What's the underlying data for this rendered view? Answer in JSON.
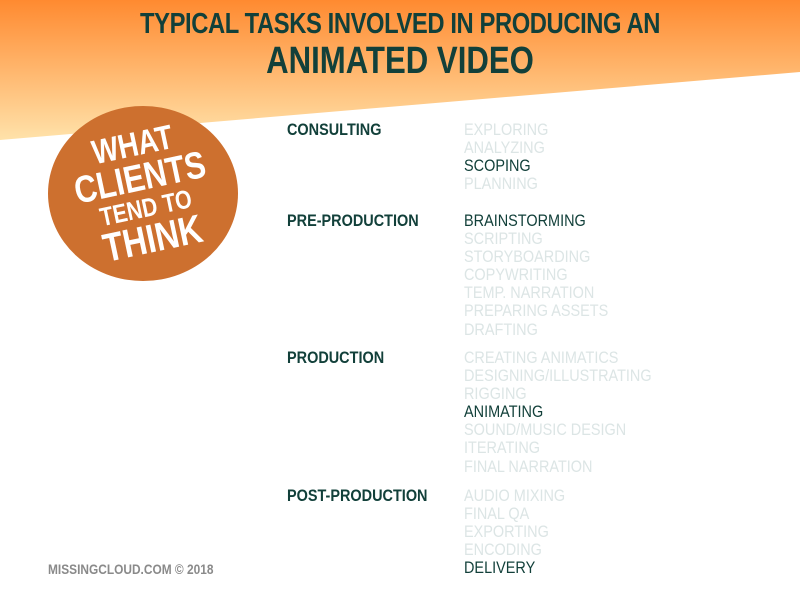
{
  "title": {
    "line1": "TYPICAL TASKS INVOLVED IN PRODUCING AN",
    "line2": "ANIMATED VIDEO"
  },
  "badge": {
    "lines": [
      "WHAT",
      "CLIENTS",
      "TEND TO",
      "THINK"
    ],
    "color": "#cd702f"
  },
  "colors": {
    "highlight": "#12403a",
    "faded": "#dce5e5",
    "header_gradient_top": "#ff8a30",
    "header_gradient_bottom": "#ffe2aa"
  },
  "stages": [
    {
      "label": "CONSULTING",
      "tasks": [
        {
          "text": "EXPLORING",
          "highlight": false
        },
        {
          "text": "ANALYZING",
          "highlight": false
        },
        {
          "text": "SCOPING",
          "highlight": true
        },
        {
          "text": "PLANNING",
          "highlight": false
        }
      ]
    },
    {
      "label": "PRE-PRODUCTION",
      "tasks": [
        {
          "text": "BRAINSTORMING",
          "highlight": true
        },
        {
          "text": "SCRIPTING",
          "highlight": false
        },
        {
          "text": "STORYBOARDING",
          "highlight": false
        },
        {
          "text": "COPYWRITING",
          "highlight": false
        },
        {
          "text": "TEMP. NARRATION",
          "highlight": false
        },
        {
          "text": "PREPARING ASSETS",
          "highlight": false
        },
        {
          "text": "DRAFTING",
          "highlight": false
        }
      ]
    },
    {
      "label": "PRODUCTION",
      "tasks": [
        {
          "text": "CREATING ANIMATICS",
          "highlight": false
        },
        {
          "text": "DESIGNING/ILLUSTRATING",
          "highlight": false
        },
        {
          "text": "RIGGING",
          "highlight": false
        },
        {
          "text": "ANIMATING",
          "highlight": true
        },
        {
          "text": "SOUND/MUSIC DESIGN",
          "highlight": false
        },
        {
          "text": "ITERATING",
          "highlight": false
        },
        {
          "text": "FINAL NARRATION",
          "highlight": false
        }
      ]
    },
    {
      "label": "POST-PRODUCTION",
      "tasks": [
        {
          "text": "AUDIO MIXING",
          "highlight": false
        },
        {
          "text": "FINAL QA",
          "highlight": false
        },
        {
          "text": "EXPORTING",
          "highlight": false
        },
        {
          "text": "ENCODING",
          "highlight": false
        },
        {
          "text": "DELIVERY",
          "highlight": true
        }
      ]
    }
  ],
  "footer": "MISSINGCLOUD.COM © 2018"
}
